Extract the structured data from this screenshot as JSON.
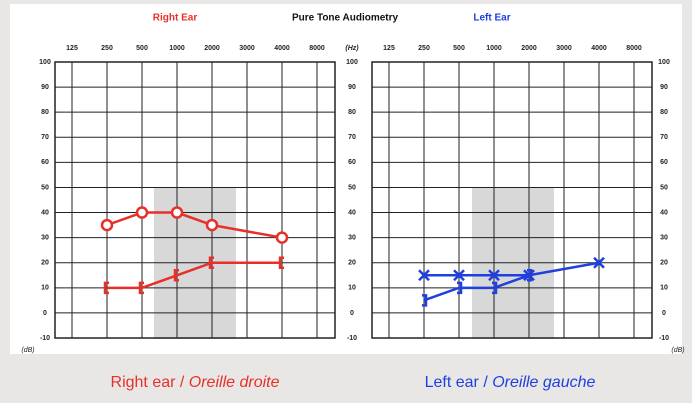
{
  "title": "Pure Tone Audiometry",
  "x_unit_label": "(Hz)",
  "y_unit_label": "(dB)",
  "chart_data": [
    {
      "type": "line",
      "title": "Right Ear",
      "color": "#e8302a",
      "caption": {
        "text": "Right ear /",
        "italic": "Oreille droite"
      },
      "xticks": [
        125,
        250,
        500,
        1000,
        2000,
        3000,
        4000,
        8000
      ],
      "ylim": [
        -10,
        100
      ],
      "yticks": [
        -10,
        0,
        10,
        20,
        30,
        40,
        50,
        60,
        70,
        80,
        90,
        100
      ],
      "grid": true,
      "series": [
        {
          "marker": "bracket-left",
          "color": "#e8302a",
          "x": [
            250,
            500,
            1000,
            2000,
            4000
          ],
          "values": [
            10,
            10,
            15,
            20,
            20
          ]
        },
        {
          "marker": "circle",
          "color": "#e8302a",
          "x": [
            250,
            500,
            1000,
            2000,
            4000
          ],
          "values": [
            35,
            40,
            40,
            35,
            30
          ]
        }
      ]
    },
    {
      "type": "line",
      "title": "Left Ear",
      "color": "#1f3fe0",
      "caption": {
        "text": "Left ear /",
        "italic": "Oreille gauche"
      },
      "xticks": [
        125,
        250,
        500,
        1000,
        2000,
        3000,
        4000,
        8000
      ],
      "ylim": [
        -10,
        100
      ],
      "yticks": [
        -10,
        0,
        10,
        20,
        30,
        40,
        50,
        60,
        70,
        80,
        90,
        100
      ],
      "grid": true,
      "series": [
        {
          "marker": "bracket-right",
          "color": "#1f3fe0",
          "x": [
            250,
            500,
            1000,
            2000
          ],
          "values": [
            5,
            10,
            10,
            15
          ]
        },
        {
          "marker": "cross",
          "color": "#1f3fe0",
          "x": [
            250,
            500,
            1000,
            2000,
            4000
          ],
          "values": [
            15,
            15,
            15,
            15,
            20
          ]
        }
      ]
    }
  ]
}
